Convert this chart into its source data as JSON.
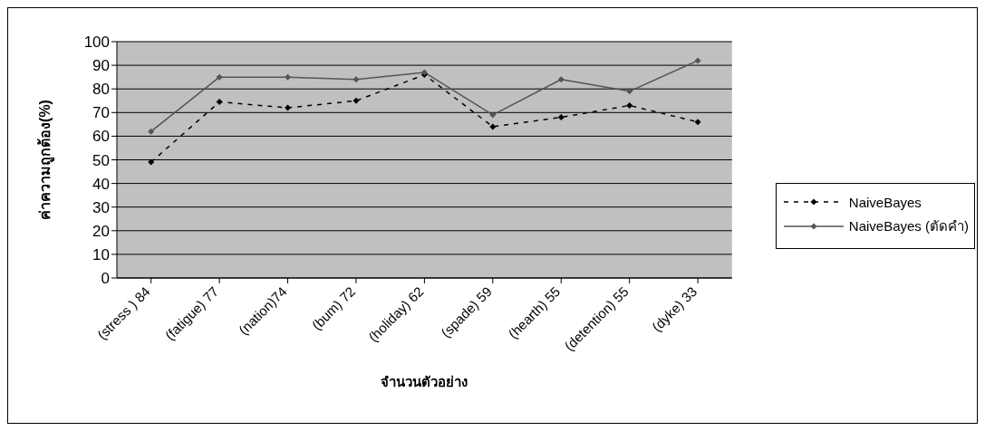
{
  "chart_data": {
    "type": "line",
    "xlabel": "จำนวนตัวอย่าง",
    "ylabel": "ค่าความถูกต้อง(%)",
    "categories": [
      "(stress ) 84",
      "(fatigue) 77",
      "(nation)74",
      "(bum) 72",
      "(holiday) 62",
      "(spade) 59",
      "(hearth) 55",
      "(detention) 55",
      "(dyke) 33"
    ],
    "series": [
      {
        "name": "NaiveBayes",
        "color": "#000000",
        "line_style": "dashed",
        "values": [
          49,
          74.5,
          72,
          75,
          86,
          64,
          68,
          73,
          66
        ]
      },
      {
        "name": "NaiveBayes (ตัดคำ)",
        "color": "#555555",
        "line_style": "solid",
        "values": [
          62,
          85,
          85,
          84,
          87,
          69,
          84,
          79,
          92
        ]
      }
    ],
    "ylim": [
      0,
      100
    ],
    "yticks": [
      0,
      10,
      20,
      30,
      40,
      50,
      60,
      70,
      80,
      90,
      100
    ],
    "grid": "y",
    "legend": "right",
    "marker": "diamond"
  }
}
